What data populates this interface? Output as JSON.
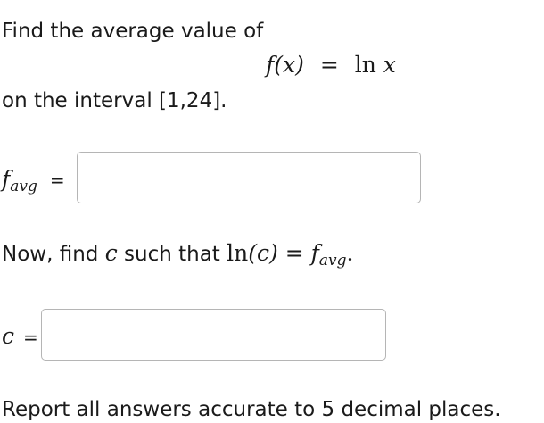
{
  "question": {
    "intro": "Find the average value of",
    "formula": {
      "lhs": "f(x)",
      "eq": "=",
      "rhs_fn": "ln",
      "rhs_var": "x"
    },
    "interval_text": "on the interval [1,24]."
  },
  "answer1": {
    "label_main": "f",
    "label_sub": "avg",
    "eq": "=",
    "value": "",
    "placeholder": ""
  },
  "part2": {
    "text1": "Now, find ",
    "var": "c",
    "text2": " such that ",
    "fn": "ln",
    "arg": "(c)",
    "eq": " = ",
    "rhs_main": "f",
    "rhs_sub": "avg",
    "end": "."
  },
  "answer2": {
    "label": "c",
    "eq": "=",
    "value": "",
    "placeholder": ""
  },
  "footer": "Report all answers accurate to 5 decimal places."
}
